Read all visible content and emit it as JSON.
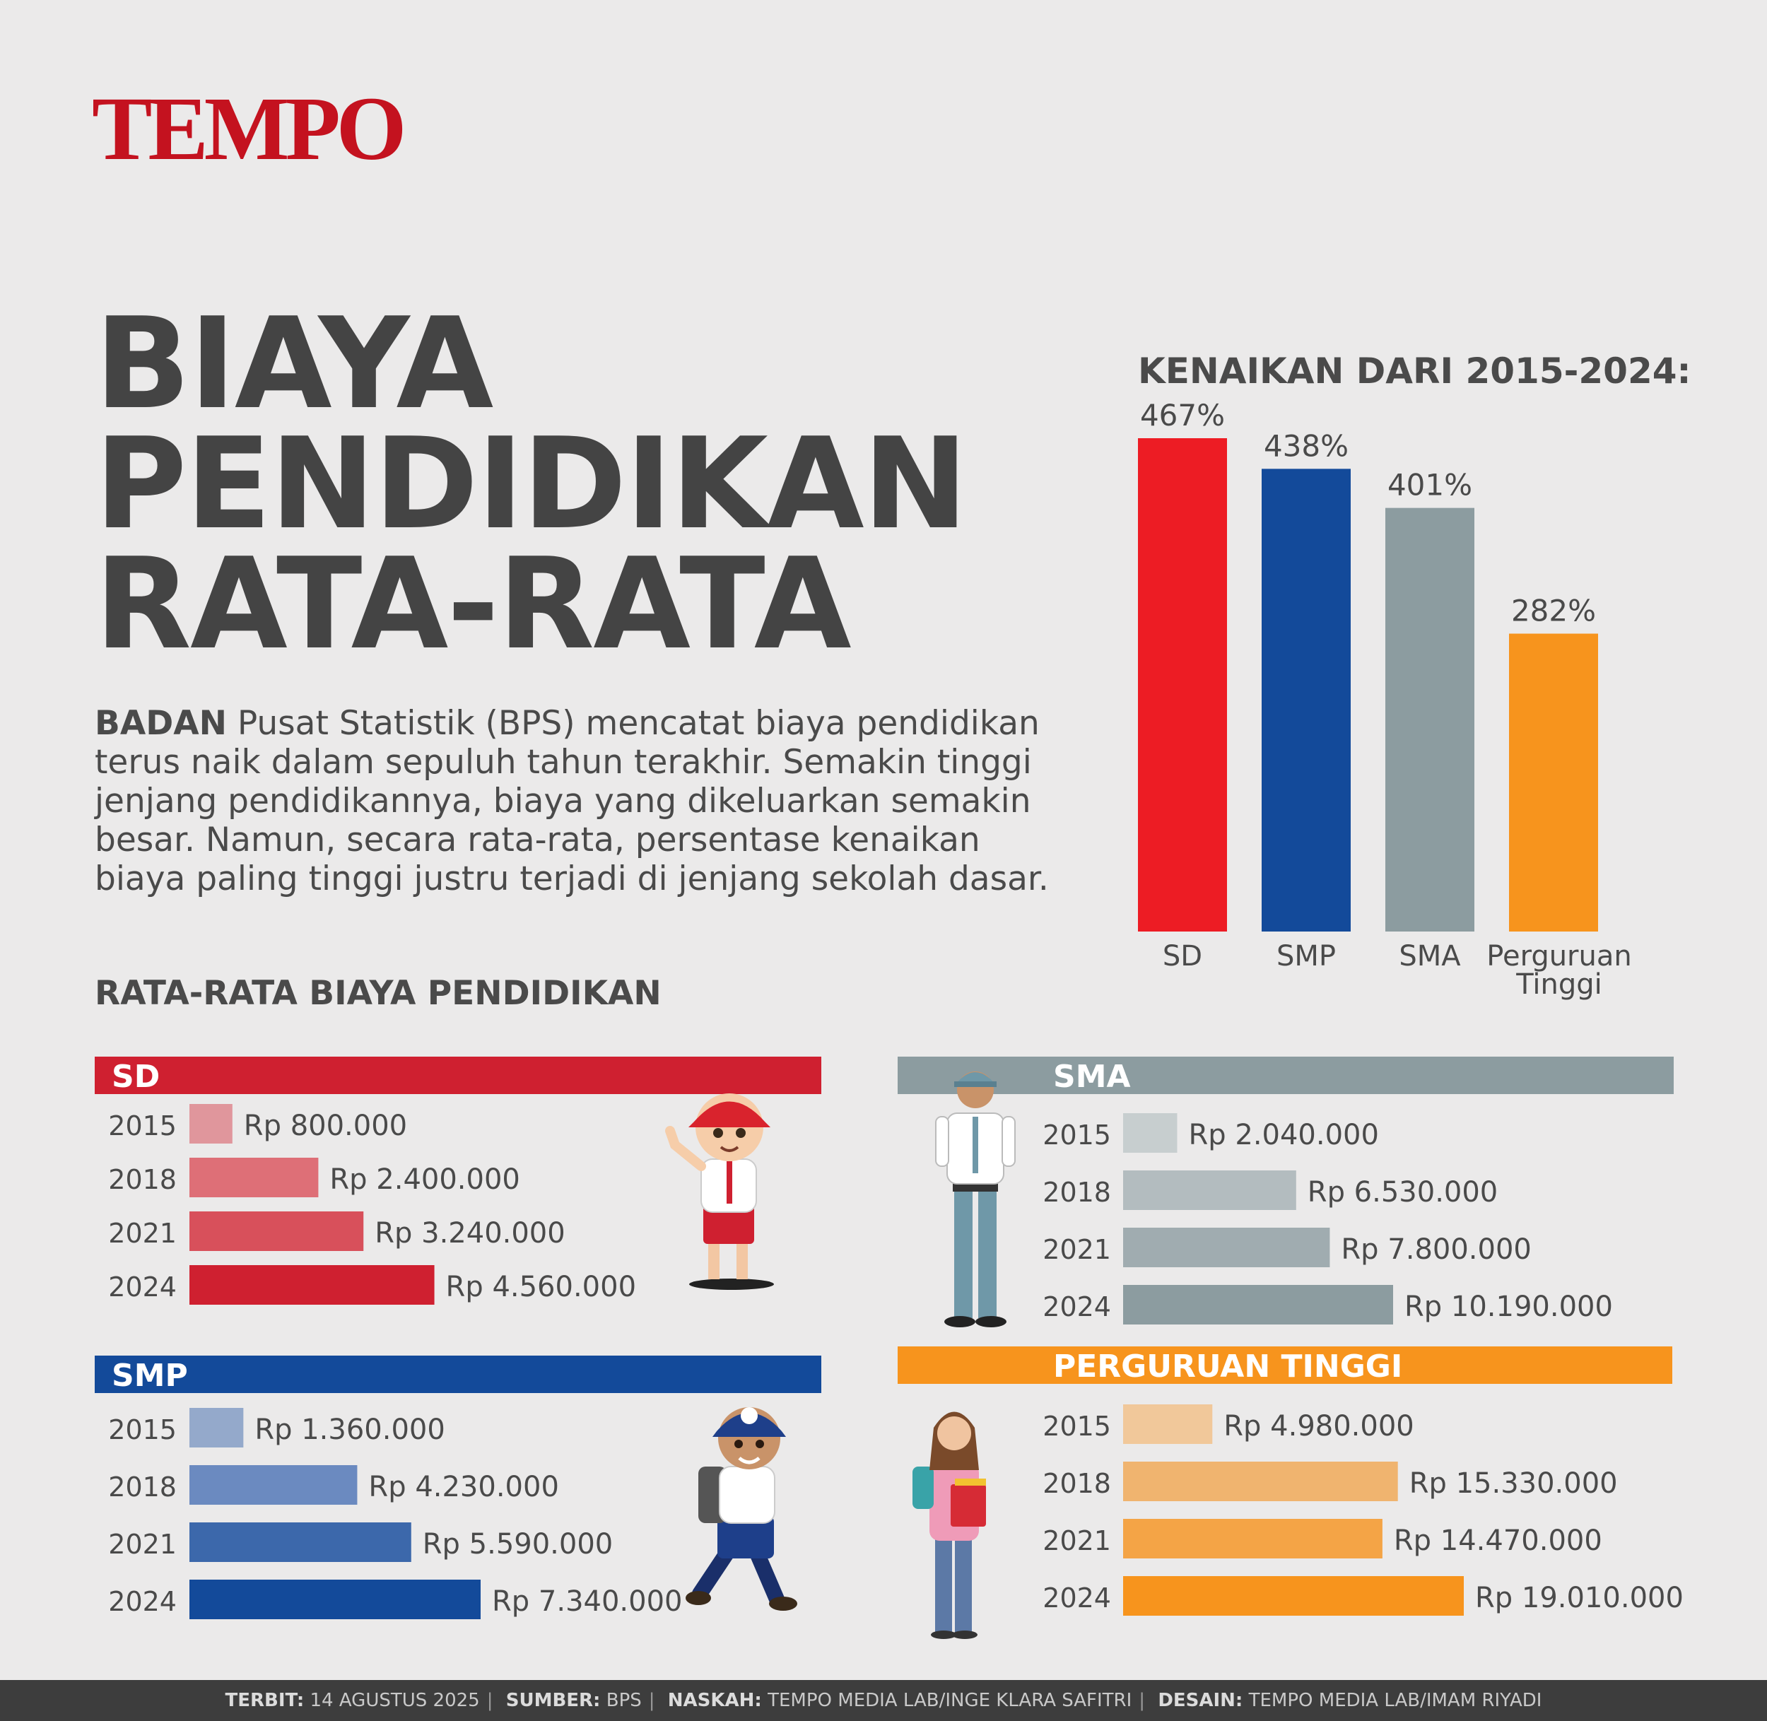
{
  "logo": "TEMPO",
  "title_lines": [
    "BIAYA",
    "PENDIDIKAN",
    "RATA-RATA"
  ],
  "intro": {
    "lead": "BADAN",
    "text": " Pusat Statistik (BPS) mencatat biaya pendidikan terus naik dalam sepuluh tahun terakhir. Semakin tinggi jenjang pendidikannya, biaya yang dikeluarkan semakin besar. Namun, secara rata-rata, persentase kenaikan biaya paling tinggi justru terjadi di jenjang sekolah dasar."
  },
  "subhead": "RATA-RATA BIAYA PENDIDIKAN",
  "footer": {
    "terbit_label": "TERBIT:",
    "terbit": "14 AGUSTUS 2025",
    "sumber_label": "SUMBER:",
    "sumber": "BPS",
    "naskah_label": "NASKAH:",
    "naskah": "TEMPO MEDIA LAB/INGE KLARA SAFITRI",
    "desain_label": "DESAIN:",
    "desain": "TEMPO MEDIA LAB/IMAM RIYADI"
  },
  "chart_data": [
    {
      "type": "bar",
      "title": "KENAIKAN DARI 2015-2024:",
      "categories": [
        "SD",
        "SMP",
        "SMA",
        "Perguruan Tinggi"
      ],
      "values": [
        467,
        438,
        401,
        282
      ],
      "labels": [
        "467%",
        "438%",
        "401%",
        "282%"
      ],
      "colors": [
        "#ed1c24",
        "#134a9a",
        "#8c9ca0",
        "#f7941d"
      ],
      "ylim": [
        0,
        467
      ]
    },
    {
      "type": "bar",
      "orientation": "horizontal",
      "title": "SD",
      "categories": [
        "2015",
        "2018",
        "2021",
        "2024"
      ],
      "values": [
        800000,
        2400000,
        3240000,
        4560000
      ],
      "labels": [
        "Rp 800.000",
        "Rp 2.400.000",
        "Rp 3.240.000",
        "Rp 4.560.000"
      ],
      "color": "#cf2030",
      "bar_colors": [
        "#e0969c",
        "#de6f77",
        "#d8505b",
        "#cf2030"
      ]
    },
    {
      "type": "bar",
      "orientation": "horizontal",
      "title": "SMP",
      "categories": [
        "2015",
        "2018",
        "2021",
        "2024"
      ],
      "values": [
        1360000,
        4230000,
        5590000,
        7340000
      ],
      "labels": [
        "Rp 1.360.000",
        "Rp 4.230.000",
        "Rp 5.590.000",
        "Rp 7.340.000"
      ],
      "color": "#134a9a",
      "bar_colors": [
        "#94a9cb",
        "#6b8ac0",
        "#3c68ab",
        "#134a9a"
      ]
    },
    {
      "type": "bar",
      "orientation": "horizontal",
      "title": "SMA",
      "categories": [
        "2015",
        "2018",
        "2021",
        "2024"
      ],
      "values": [
        2040000,
        6530000,
        7800000,
        10190000
      ],
      "labels": [
        "Rp 2.040.000",
        "Rp 6.530.000",
        "Rp 7.800.000",
        "Rp 10.190.000"
      ],
      "color": "#8c9ca0",
      "bar_colors": [
        "#c7cecf",
        "#b3bcbf",
        "#a0acb0",
        "#8c9ca0"
      ]
    },
    {
      "type": "bar",
      "orientation": "horizontal",
      "title": "PERGURUAN TINGGI",
      "categories": [
        "2015",
        "2018",
        "2021",
        "2024"
      ],
      "values": [
        4980000,
        15330000,
        14470000,
        19010000
      ],
      "labels": [
        "Rp 4.980.000",
        "Rp 15.330.000",
        "Rp 14.470.000",
        "Rp 19.010.000"
      ],
      "color": "#f7941d",
      "bar_colors": [
        "#f1c89a",
        "#f0b46f",
        "#f4a446",
        "#f7941d"
      ]
    }
  ]
}
